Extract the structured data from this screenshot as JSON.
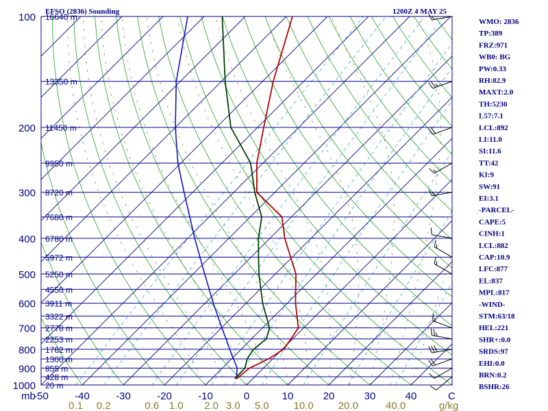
{
  "chart_data": {
    "type": "skew-t",
    "title": "EFSO (2836) Sounding",
    "valid_time": "1200Z  4 MAY 25",
    "pressure_levels": [
      100,
      200,
      300,
      400,
      500,
      600,
      700,
      800,
      900,
      1000
    ],
    "pressure_label_text": [
      "100",
      "200",
      "300",
      "400",
      "500",
      "600",
      "700",
      "800",
      "900",
      "1000"
    ],
    "pressure_unit": "mb",
    "height_levels": [
      {
        "p": 100,
        "h": "16640 m"
      },
      {
        "p": 150,
        "h": "13350 m"
      },
      {
        "p": 200,
        "h": "11450 m"
      },
      {
        "p": 250,
        "h": "9950 m"
      },
      {
        "p": 300,
        "h": "8720 m"
      },
      {
        "p": 350,
        "h": "7680 m"
      },
      {
        "p": 400,
        "h": "6780 m"
      },
      {
        "p": 450,
        "h": "5972 m"
      },
      {
        "p": 500,
        "h": "5250 m"
      },
      {
        "p": 550,
        "h": "4550 m"
      },
      {
        "p": 600,
        "h": "3911 m"
      },
      {
        "p": 650,
        "h": "3322 m"
      },
      {
        "p": 700,
        "h": "2778 m"
      },
      {
        "p": 750,
        "h": "2253 m"
      },
      {
        "p": 800,
        "h": "1762 m"
      },
      {
        "p": 850,
        "h": "1300 m"
      },
      {
        "p": 900,
        "h": "855 m"
      },
      {
        "p": 950,
        "h": "428 m"
      },
      {
        "p": 1000,
        "h": "20 m"
      }
    ],
    "temp_ticks": [
      -50,
      -40,
      -30,
      -20,
      -10,
      0,
      10,
      20,
      30,
      40
    ],
    "temp_tick_text": [
      "-50",
      "-40",
      "-30",
      "-20",
      "-10",
      "0",
      "10",
      "20",
      "30",
      "40"
    ],
    "temp_unit": "C",
    "mixing_ratio_ticks": [
      0.1,
      0.2,
      0.6,
      1.0,
      2.0,
      3.0,
      5.0,
      10.0,
      20.0,
      40.0
    ],
    "mixing_ratio_text": [
      "0.1",
      "0.2",
      "0.6",
      "1.0",
      "2.0",
      "3.0",
      "5.0",
      "10.0",
      "20.0",
      "40.0"
    ],
    "mixing_ratio_unit": "g/kg",
    "temperature_profile": [
      {
        "p": 962,
        "t": -4.0
      },
      {
        "p": 900,
        "t": -3.4
      },
      {
        "p": 850,
        "t": -1.0
      },
      {
        "p": 800,
        "t": 0.3
      },
      {
        "p": 750,
        "t": -0.4
      },
      {
        "p": 700,
        "t": -1.3
      },
      {
        "p": 600,
        "t": -8.0
      },
      {
        "p": 500,
        "t": -15.0
      },
      {
        "p": 450,
        "t": -20.4
      },
      {
        "p": 400,
        "t": -26.4
      },
      {
        "p": 350,
        "t": -32.3
      },
      {
        "p": 300,
        "t": -44.4
      },
      {
        "p": 250,
        "t": -51.5
      },
      {
        "p": 200,
        "t": -58.5
      },
      {
        "p": 150,
        "t": -67.4
      },
      {
        "p": 100,
        "t": -78.5
      }
    ],
    "dewpoint_profile": [
      {
        "p": 962,
        "t": -4.4
      },
      {
        "p": 900,
        "t": -4.5
      },
      {
        "p": 850,
        "t": -6.2
      },
      {
        "p": 800,
        "t": -7.0
      },
      {
        "p": 750,
        "t": -6.4
      },
      {
        "p": 700,
        "t": -8.3
      },
      {
        "p": 600,
        "t": -16.0
      },
      {
        "p": 500,
        "t": -24.0
      },
      {
        "p": 450,
        "t": -28.2
      },
      {
        "p": 400,
        "t": -32.8
      },
      {
        "p": 350,
        "t": -37.2
      },
      {
        "p": 300,
        "t": -44.9
      },
      {
        "p": 250,
        "t": -53.0
      },
      {
        "p": 200,
        "t": -66.5
      },
      {
        "p": 150,
        "t": -79.1
      },
      {
        "p": 100,
        "t": -95.6
      }
    ],
    "parcel_profile": [
      {
        "p": 962,
        "t": -4.0
      },
      {
        "p": 900,
        "t": -6.4
      },
      {
        "p": 850,
        "t": -9.5
      },
      {
        "p": 800,
        "t": -12.8
      },
      {
        "p": 750,
        "t": -16.2
      },
      {
        "p": 700,
        "t": -19.9
      },
      {
        "p": 600,
        "t": -28.0
      },
      {
        "p": 500,
        "t": -37.2
      },
      {
        "p": 400,
        "t": -48.3
      },
      {
        "p": 300,
        "t": -62.1
      },
      {
        "p": 250,
        "t": -70.7
      },
      {
        "p": 200,
        "t": -80.0
      },
      {
        "p": 150,
        "t": -91.0
      },
      {
        "p": 100,
        "t": -104.0
      }
    ],
    "wind_barbs": [
      {
        "p": 100,
        "dir": 260,
        "spd": 15
      },
      {
        "p": 150,
        "dir": 250,
        "spd": 25
      },
      {
        "p": 200,
        "dir": 250,
        "spd": 20
      },
      {
        "p": 250,
        "dir": 240,
        "spd": 15
      },
      {
        "p": 300,
        "dir": 260,
        "spd": 15
      },
      {
        "p": 400,
        "dir": 280,
        "spd": 10
      },
      {
        "p": 450,
        "dir": 300,
        "spd": 15
      },
      {
        "p": 500,
        "dir": 300,
        "spd": 15
      },
      {
        "p": 700,
        "dir": 290,
        "spd": 15
      },
      {
        "p": 750,
        "dir": 280,
        "spd": 25
      },
      {
        "p": 800,
        "dir": 260,
        "spd": 30
      },
      {
        "p": 850,
        "dir": 250,
        "spd": 20
      },
      {
        "p": 900,
        "dir": 240,
        "spd": 10
      },
      {
        "p": 950,
        "dir": 230,
        "spd": 10
      }
    ],
    "grid": true
  },
  "indices": [
    "WMO: 2836",
    "TP:389",
    "FRZ:971",
    "WB0: BG",
    "PW:0.33",
    "RH:82.9",
    "MAXT:2.0",
    "TH:5230",
    "L57:7.1",
    "LCL:892",
    "LI:11.0",
    "SI:11.6",
    "TT:42",
    "KI:9",
    "SW:91",
    "EI:3.1",
    "-PARCEL-",
    "CAPE:5",
    "CINH:1",
    "LCL:882",
    "CAP:10.9",
    "LFC:877",
    "EL:837",
    "MPL:817",
    "-WIND-",
    "STM:63/18",
    "HEL:221",
    "SHR+:0.0",
    "SRDS:97",
    "EHI:0.0",
    "BRN:0.2",
    "BSHR:26"
  ],
  "colors": {
    "isobar": "#00008b",
    "isotherm": "#00007f",
    "dry_adiabat": "#1f9f1f",
    "moist_adiabat": "#7a6a3a",
    "mixing_ratio": "#3aa0d0",
    "temperature": "#b00000",
    "dewpoint": "#003f00",
    "parcel": "#1010c0",
    "text": "#00007f",
    "mixing_label": "#8b7a2a"
  }
}
